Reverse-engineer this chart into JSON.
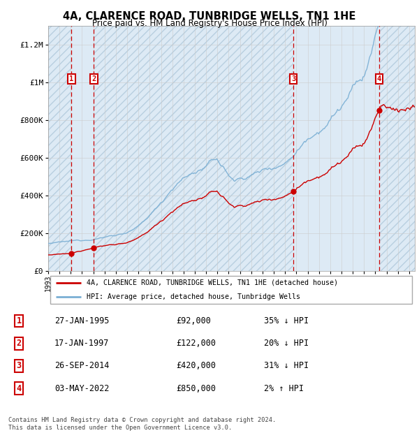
{
  "title": "4A, CLARENCE ROAD, TUNBRIDGE WELLS, TN1 1HE",
  "subtitle": "Price paid vs. HM Land Registry's House Price Index (HPI)",
  "ylim": [
    0,
    1300000
  ],
  "yticks": [
    0,
    200000,
    400000,
    600000,
    800000,
    1000000,
    1200000
  ],
  "ytick_labels": [
    "£0",
    "£200K",
    "£400K",
    "£600K",
    "£800K",
    "£1M",
    "£1.2M"
  ],
  "xmin": 1993.0,
  "xmax": 2025.5,
  "sales": [
    {
      "label": "1",
      "date_str": "27-JAN-1995",
      "date_x": 1995.07,
      "price": 92000
    },
    {
      "label": "2",
      "date_str": "17-JAN-1997",
      "date_x": 1997.05,
      "price": 122000
    },
    {
      "label": "3",
      "date_str": "26-SEP-2014",
      "date_x": 2014.74,
      "price": 420000
    },
    {
      "label": "4",
      "date_str": "03-MAY-2022",
      "date_x": 2022.34,
      "price": 850000
    }
  ],
  "red_line_color": "#cc0000",
  "blue_line_color": "#7aafd4",
  "dashed_line_color": "#cc0000",
  "sale_box_color": "#cc0000",
  "plain_bg_color": "#ddeaf5",
  "hatch_bg_color": "#ddeaf5",
  "hatch_pattern": "///",
  "hatch_color": "#b8cfe0",
  "legend_label_red": "4A, CLARENCE ROAD, TUNBRIDGE WELLS, TN1 1HE (detached house)",
  "legend_label_blue": "HPI: Average price, detached house, Tunbridge Wells",
  "footer": "Contains HM Land Registry data © Crown copyright and database right 2024.\nThis data is licensed under the Open Government Licence v3.0.",
  "table_rows": [
    [
      "1",
      "27-JAN-1995",
      "£92,000",
      "35% ↓ HPI"
    ],
    [
      "2",
      "17-JAN-1997",
      "£122,000",
      "20% ↓ HPI"
    ],
    [
      "3",
      "26-SEP-2014",
      "£420,000",
      "31% ↓ HPI"
    ],
    [
      "4",
      "03-MAY-2022",
      "£850,000",
      "2% ↑ HPI"
    ]
  ]
}
